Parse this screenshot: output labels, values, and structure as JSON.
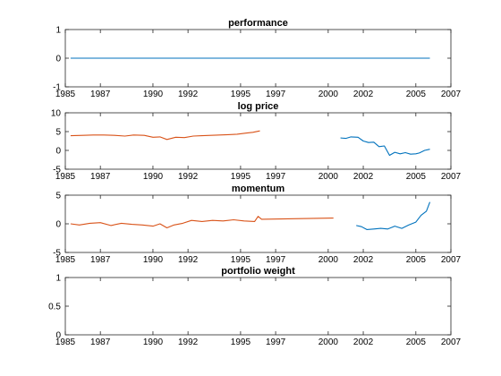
{
  "chart_data": [
    {
      "type": "line",
      "title": "performance",
      "xlim": [
        1985,
        2007
      ],
      "ylim": [
        -1,
        1
      ],
      "xticks": [
        1985,
        1987,
        1990,
        1992,
        1995,
        1997,
        2000,
        2002,
        2005,
        2007
      ],
      "yticks": [
        -1,
        0,
        1
      ],
      "grid": false,
      "series": [
        {
          "color": "#0072BD",
          "points": [
            [
              1985.3,
              0
            ],
            [
              2005.8,
              0
            ]
          ]
        }
      ]
    },
    {
      "type": "line",
      "title": "log price",
      "xlim": [
        1985,
        2007
      ],
      "ylim": [
        -5,
        10
      ],
      "xticks": [
        1985,
        1987,
        1990,
        1992,
        1995,
        1997,
        2000,
        2002,
        2005,
        2007
      ],
      "yticks": [
        -5,
        0,
        5,
        10
      ],
      "grid": false,
      "series": [
        {
          "color": "#D95319",
          "points": [
            [
              1985.3,
              3.9
            ],
            [
              1986.0,
              4.0
            ],
            [
              1986.6,
              4.1
            ],
            [
              1987.2,
              4.1
            ],
            [
              1987.8,
              4.0
            ],
            [
              1988.4,
              3.8
            ],
            [
              1988.9,
              4.1
            ],
            [
              1989.5,
              4.0
            ],
            [
              1990.0,
              3.5
            ],
            [
              1990.4,
              3.6
            ],
            [
              1990.8,
              2.9
            ],
            [
              1991.3,
              3.5
            ],
            [
              1991.8,
              3.4
            ],
            [
              1992.3,
              3.8
            ],
            [
              1992.8,
              3.9
            ],
            [
              1993.3,
              4.0
            ],
            [
              1993.8,
              4.1
            ],
            [
              1994.3,
              4.2
            ],
            [
              1994.8,
              4.3
            ],
            [
              1995.3,
              4.6
            ],
            [
              1995.7,
              4.8
            ],
            [
              1996.1,
              5.2
            ]
          ]
        },
        {
          "color": "#0072BD",
          "points": [
            [
              2000.7,
              3.3
            ],
            [
              2001.0,
              3.2
            ],
            [
              2001.3,
              3.6
            ],
            [
              2001.7,
              3.5
            ],
            [
              2002.0,
              2.5
            ],
            [
              2002.3,
              2.1
            ],
            [
              2002.6,
              2.2
            ],
            [
              2002.9,
              1.0
            ],
            [
              2003.2,
              1.2
            ],
            [
              2003.5,
              -1.3
            ],
            [
              2003.8,
              -0.5
            ],
            [
              2004.1,
              -0.9
            ],
            [
              2004.4,
              -0.6
            ],
            [
              2004.7,
              -1.0
            ],
            [
              2005.0,
              -0.9
            ],
            [
              2005.2,
              -0.7
            ],
            [
              2005.5,
              0.0
            ],
            [
              2005.8,
              0.3
            ]
          ]
        }
      ]
    },
    {
      "type": "line",
      "title": "momentum",
      "xlim": [
        1985,
        2007
      ],
      "ylim": [
        -5,
        5
      ],
      "xticks": [
        1985,
        1987,
        1990,
        1992,
        1995,
        1997,
        2000,
        2002,
        2005,
        2007
      ],
      "yticks": [
        -5,
        0,
        5
      ],
      "grid": false,
      "series": [
        {
          "color": "#D95319",
          "points": [
            [
              1985.3,
              0.0
            ],
            [
              1985.8,
              -0.2
            ],
            [
              1986.4,
              0.1
            ],
            [
              1987.0,
              0.2
            ],
            [
              1987.6,
              -0.3
            ],
            [
              1988.2,
              0.1
            ],
            [
              1988.8,
              -0.1
            ],
            [
              1989.4,
              -0.2
            ],
            [
              1990.0,
              -0.4
            ],
            [
              1990.4,
              0.0
            ],
            [
              1990.8,
              -0.7
            ],
            [
              1991.2,
              -0.2
            ],
            [
              1991.7,
              0.1
            ],
            [
              1992.2,
              0.6
            ],
            [
              1992.8,
              0.4
            ],
            [
              1993.4,
              0.6
            ],
            [
              1994.0,
              0.5
            ],
            [
              1994.6,
              0.7
            ],
            [
              1995.2,
              0.5
            ],
            [
              1995.8,
              0.4
            ],
            [
              1996.0,
              1.3
            ],
            [
              1996.2,
              0.8
            ],
            [
              2000.3,
              1.0
            ]
          ]
        },
        {
          "color": "#0072BD",
          "points": [
            [
              2001.6,
              -0.3
            ],
            [
              2001.9,
              -0.5
            ],
            [
              2002.2,
              -1.0
            ],
            [
              2002.6,
              -0.9
            ],
            [
              2003.0,
              -0.8
            ],
            [
              2003.4,
              -0.9
            ],
            [
              2003.8,
              -0.4
            ],
            [
              2004.2,
              -0.8
            ],
            [
              2004.6,
              -0.2
            ],
            [
              2005.0,
              0.3
            ],
            [
              2005.3,
              1.5
            ],
            [
              2005.6,
              2.2
            ],
            [
              2005.8,
              3.8
            ]
          ]
        }
      ]
    },
    {
      "type": "line",
      "title": "portfolio weight",
      "xlim": [
        1985,
        2007
      ],
      "ylim": [
        0,
        1
      ],
      "xticks": [
        1985,
        1987,
        1990,
        1992,
        1995,
        1997,
        2000,
        2002,
        2005,
        2007
      ],
      "yticks": [
        0,
        0.5,
        1
      ],
      "grid": false,
      "series": []
    }
  ]
}
